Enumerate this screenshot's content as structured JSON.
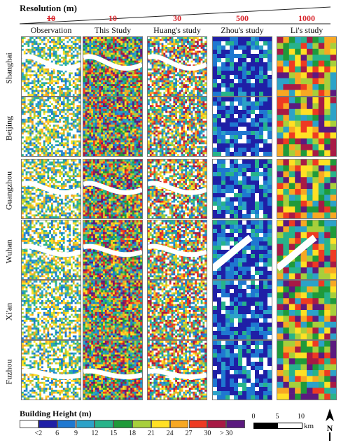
{
  "header": {
    "resolution_title": "Resolution (m)",
    "resolutions": [
      "10",
      "10",
      "30",
      "500",
      "1000"
    ],
    "columns": [
      "Observation",
      "This Study",
      "Huang's study",
      "Zhou's study",
      "Li's study"
    ]
  },
  "rows": [
    "Shanghai",
    "Beijing",
    "Guangzhou",
    "Wuhan",
    "Xi'an",
    "Fuzhou"
  ],
  "legend": {
    "title": "Building Height (m)",
    "labels": [
      "<2",
      "6",
      "9",
      "12",
      "15",
      "18",
      "21",
      "24",
      "27",
      "30",
      "> 30"
    ],
    "colors": [
      "#ffffff",
      "#1f1fa6",
      "#1f78d1",
      "#2ca2c8",
      "#27b38a",
      "#1f9a3a",
      "#a7cf3b",
      "#ffe024",
      "#f7a823",
      "#ee3a22",
      "#a81a45",
      "#5b1a7f"
    ]
  },
  "scalebar": {
    "ticks": [
      "0",
      "5",
      "10"
    ],
    "unit": "km"
  },
  "north_label": "N"
}
